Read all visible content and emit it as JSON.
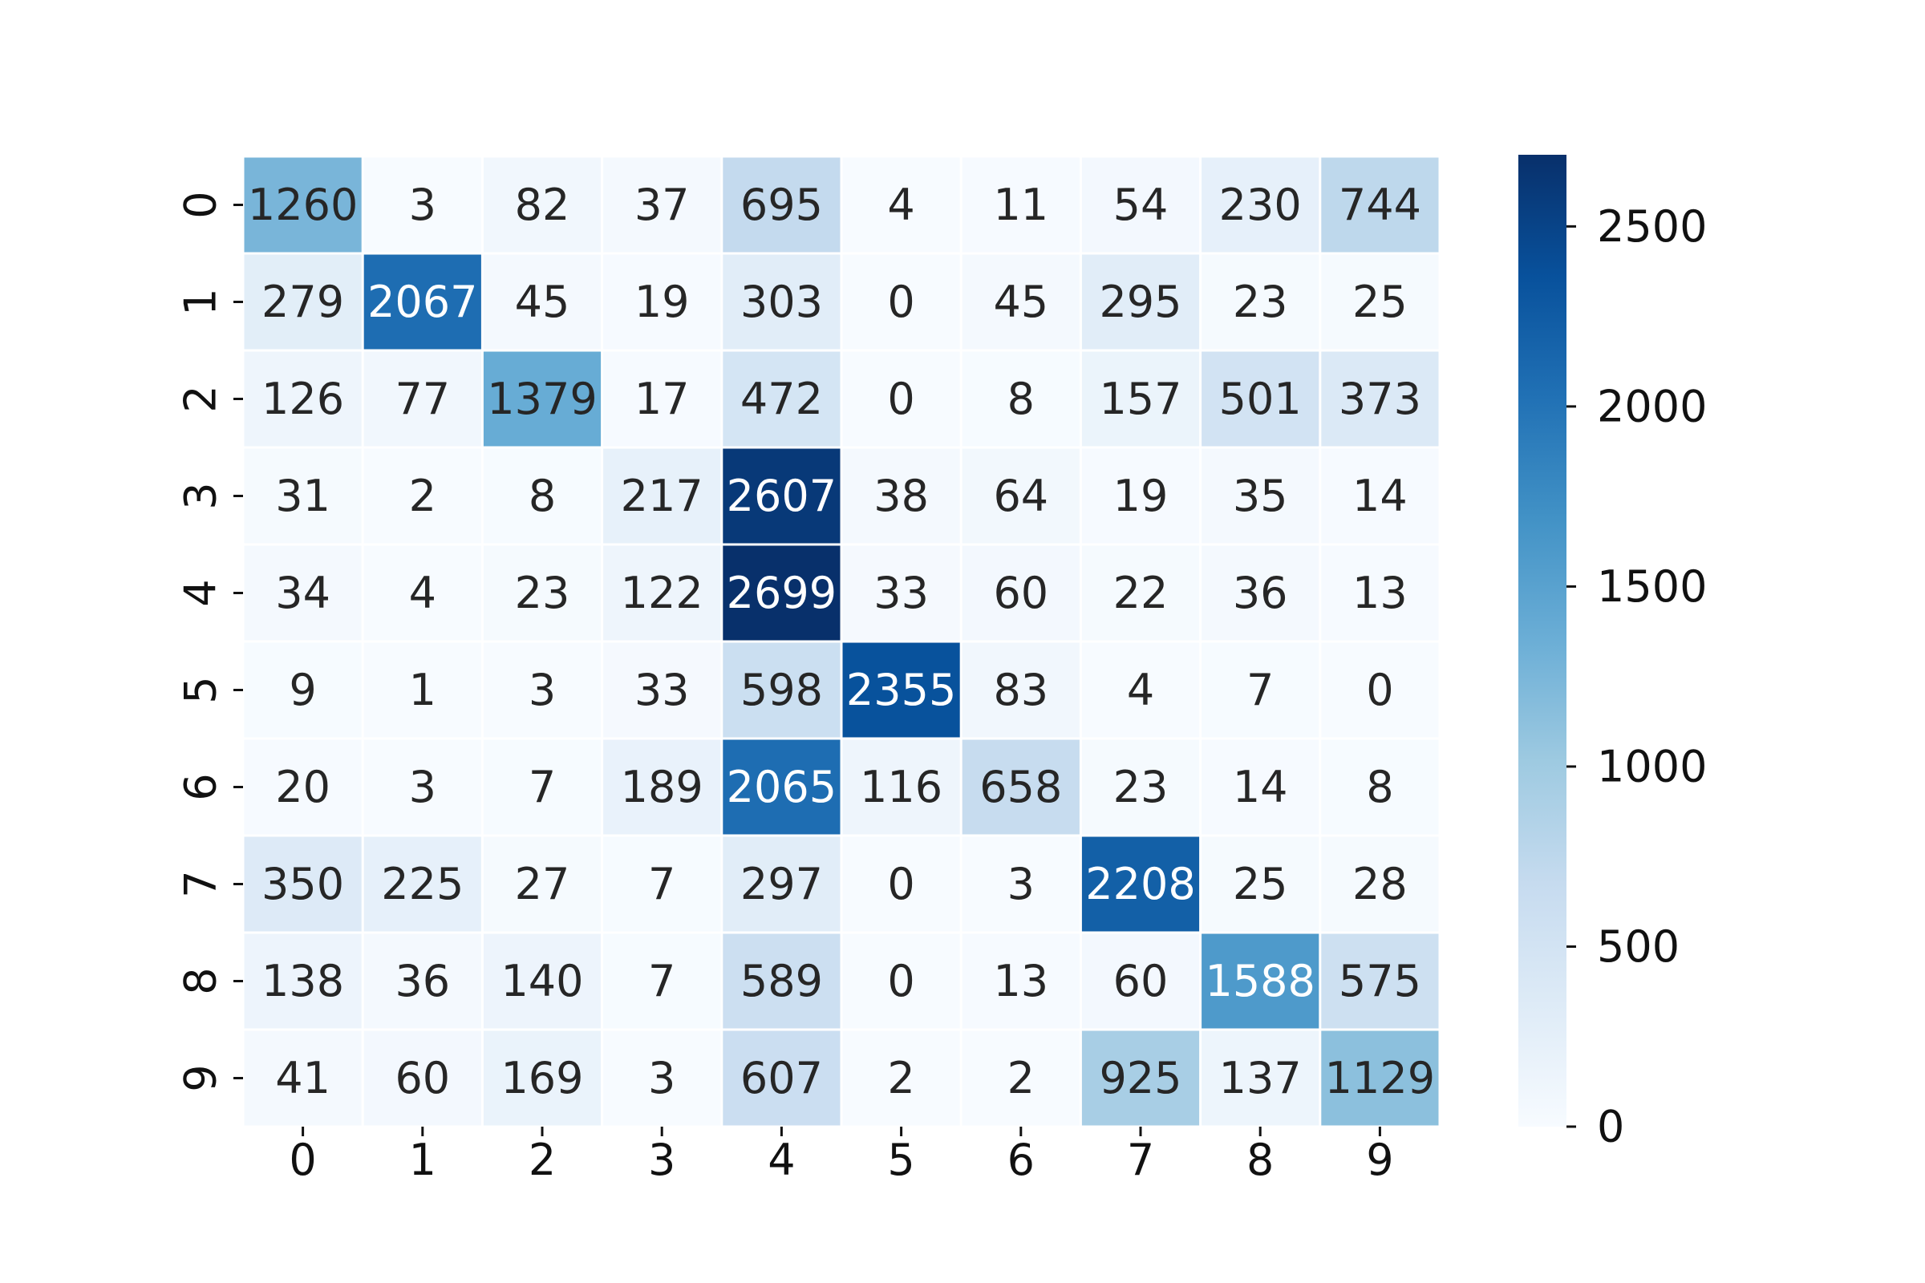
{
  "chart_data": {
    "type": "heatmap",
    "x_labels": [
      "0",
      "1",
      "2",
      "3",
      "4",
      "5",
      "6",
      "7",
      "8",
      "9"
    ],
    "y_labels": [
      "0",
      "1",
      "2",
      "3",
      "4",
      "5",
      "6",
      "7",
      "8",
      "9"
    ],
    "matrix": [
      [
        1260,
        3,
        82,
        37,
        695,
        4,
        11,
        54,
        230,
        744
      ],
      [
        279,
        2067,
        45,
        19,
        303,
        0,
        45,
        295,
        23,
        25
      ],
      [
        126,
        77,
        1379,
        17,
        472,
        0,
        8,
        157,
        501,
        373
      ],
      [
        31,
        2,
        8,
        217,
        2607,
        38,
        64,
        19,
        35,
        14
      ],
      [
        34,
        4,
        23,
        122,
        2699,
        33,
        60,
        22,
        36,
        13
      ],
      [
        9,
        1,
        3,
        33,
        598,
        2355,
        83,
        4,
        7,
        0
      ],
      [
        20,
        3,
        7,
        189,
        2065,
        116,
        658,
        23,
        14,
        8
      ],
      [
        350,
        225,
        27,
        7,
        297,
        0,
        3,
        2208,
        25,
        28
      ],
      [
        138,
        36,
        140,
        7,
        589,
        0,
        13,
        60,
        1588,
        575
      ],
      [
        41,
        60,
        169,
        3,
        607,
        2,
        2,
        925,
        137,
        1129
      ]
    ],
    "colorbar": {
      "cmap": "Blues",
      "vmin": 0,
      "vmax": 2699,
      "ticks": [
        0,
        500,
        1000,
        1500,
        2000,
        2500
      ]
    },
    "annotations": true,
    "grid": false
  }
}
